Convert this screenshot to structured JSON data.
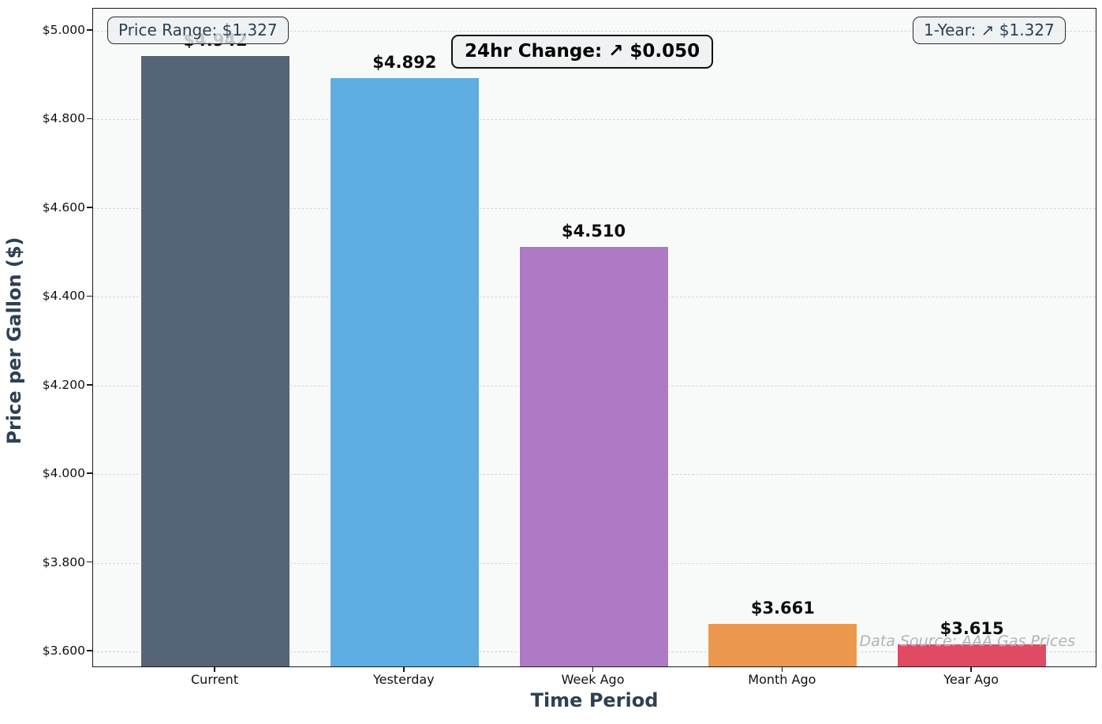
{
  "chart_data": {
    "type": "bar",
    "categories": [
      "Current",
      "Yesterday",
      "Week Ago",
      "Month Ago",
      "Year Ago"
    ],
    "values": [
      4.942,
      4.892,
      4.51,
      3.661,
      3.615
    ],
    "value_labels": [
      "$4.942",
      "$4.892",
      "$4.510",
      "$3.661",
      "$3.615"
    ],
    "bar_colors": [
      "#556476",
      "#5DADE2",
      "#AF7AC5",
      "#EB984E",
      "#E04B63"
    ],
    "title": "",
    "xlabel": "Time Period",
    "ylabel": "Price per Gallon ($)",
    "ylim": [
      3.5626,
      5.0499
    ],
    "yticks": [
      3.6,
      3.8,
      4.0,
      4.2,
      4.4,
      4.6,
      4.8,
      5.0
    ],
    "ytick_labels": [
      "$3.600",
      "$3.800",
      "$4.000",
      "$4.200",
      "$4.400",
      "$4.600",
      "$4.800",
      "$5.000"
    ],
    "grid": true,
    "legend": false
  },
  "annotations": {
    "price_range": "Price Range: $1.327",
    "day_change": "24hr Change: ↗ $0.050",
    "year_change": "1-Year: ↗ $1.327",
    "data_source": "Data Source: AAA Gas Prices"
  },
  "colors": {
    "plot_background": "#f8f9f9",
    "figure_background": "#ffffff",
    "axis_title": "#2E4053",
    "annotation_text": "#2E4053",
    "annotation_box_bg": "rgba(236, 240, 241, 0.82)",
    "data_source_text": "#AAB7B8",
    "gridline": "#d4d7d9",
    "bar_edge": "#ffffff"
  }
}
